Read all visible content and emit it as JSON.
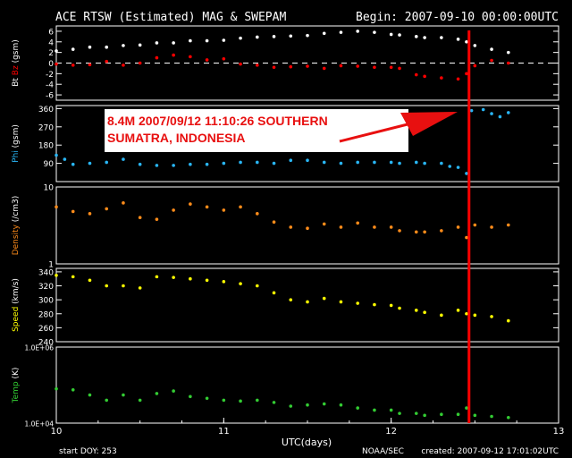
{
  "header": {
    "title": "ACE RTSW (Estimated) MAG & SWEPAM",
    "begin": "Begin: 2007-09-10 00:00:00UTC"
  },
  "footer": {
    "start_doy": "start DOY: 253",
    "xlabel": "UTC(days)",
    "source": "NOAA/SEC",
    "created": "created: 2007-09-12 17:01:02UTC"
  },
  "annotation": {
    "line1": "8.4M  2007/09/12 11:10:26 SOUTHERN",
    "line2": "SUMATRA, INDONESIA",
    "event_day": 12.465
  },
  "colors": {
    "bt": "#ffffff",
    "bz": "#ff0000",
    "phi": "#29b6f6",
    "density": "#ff8c1a",
    "speed": "#ffff00",
    "temp": "#33cc33",
    "event_line": "#ff0000",
    "frame": "#ffffff"
  },
  "chart_data": {
    "type": "scatter",
    "x_range": [
      10,
      13
    ],
    "x_ticks": [
      "10",
      "11",
      "12",
      "13"
    ],
    "panels": [
      {
        "id": "mag",
        "ylabel_parts": [
          {
            "text": "Bt",
            "color": "#ffffff"
          },
          {
            "text": " Bz",
            "color": "#ff0000"
          },
          {
            "text": " (gsm)",
            "color": "#ffffff"
          }
        ],
        "ylim": [
          -7,
          7
        ],
        "yticks": [
          "6",
          "4",
          "2",
          "0",
          "-2",
          "-4",
          "-6"
        ],
        "ytick_values": [
          6,
          4,
          2,
          0,
          -2,
          -4,
          -6
        ],
        "zero_line": 0,
        "series": [
          {
            "name": "Bt",
            "color": "#ffffff",
            "points": [
              [
                10.0,
                2.3
              ],
              [
                10.1,
                2.6
              ],
              [
                10.2,
                3.0
              ],
              [
                10.3,
                3.0
              ],
              [
                10.4,
                3.3
              ],
              [
                10.5,
                3.4
              ],
              [
                10.6,
                3.8
              ],
              [
                10.7,
                3.8
              ],
              [
                10.8,
                4.2
              ],
              [
                10.9,
                4.2
              ],
              [
                11.0,
                4.3
              ],
              [
                11.1,
                4.7
              ],
              [
                11.2,
                4.9
              ],
              [
                11.3,
                5.0
              ],
              [
                11.4,
                5.1
              ],
              [
                11.5,
                5.2
              ],
              [
                11.6,
                5.6
              ],
              [
                11.7,
                5.8
              ],
              [
                11.8,
                6.0
              ],
              [
                11.9,
                5.8
              ],
              [
                12.0,
                5.4
              ],
              [
                12.05,
                5.3
              ],
              [
                12.15,
                5.0
              ],
              [
                12.2,
                4.8
              ],
              [
                12.3,
                4.8
              ],
              [
                12.4,
                4.5
              ],
              [
                12.45,
                4.0
              ],
              [
                12.5,
                3.3
              ],
              [
                12.6,
                2.6
              ],
              [
                12.7,
                2.0
              ]
            ]
          },
          {
            "name": "Bz",
            "color": "#ff0000",
            "points": [
              [
                10.0,
                -0.2
              ],
              [
                10.1,
                -0.4
              ],
              [
                10.2,
                -0.3
              ],
              [
                10.3,
                0.3
              ],
              [
                10.4,
                -0.4
              ],
              [
                10.5,
                0.0
              ],
              [
                10.6,
                1.0
              ],
              [
                10.7,
                1.5
              ],
              [
                10.8,
                1.2
              ],
              [
                10.9,
                0.6
              ],
              [
                11.0,
                0.8
              ],
              [
                11.1,
                -0.2
              ],
              [
                11.2,
                -0.4
              ],
              [
                11.3,
                -0.8
              ],
              [
                11.4,
                -0.7
              ],
              [
                11.5,
                -0.6
              ],
              [
                11.6,
                -1.0
              ],
              [
                11.7,
                -0.5
              ],
              [
                11.8,
                -0.6
              ],
              [
                11.9,
                -0.8
              ],
              [
                12.0,
                -0.8
              ],
              [
                12.05,
                -1.0
              ],
              [
                12.15,
                -2.2
              ],
              [
                12.2,
                -2.5
              ],
              [
                12.3,
                -2.8
              ],
              [
                12.4,
                -3.0
              ],
              [
                12.45,
                -2.0
              ],
              [
                12.5,
                -0.5
              ],
              [
                12.6,
                0.5
              ],
              [
                12.7,
                0.0
              ]
            ]
          }
        ]
      },
      {
        "id": "phi",
        "ylabel_parts": [
          {
            "text": "Phi",
            "color": "#29b6f6"
          },
          {
            "text": " (gsm)",
            "color": "#ffffff"
          }
        ],
        "ylim": [
          0,
          375
        ],
        "yticks": [
          "360",
          "270",
          "180",
          "90"
        ],
        "ytick_values": [
          360,
          270,
          180,
          90
        ],
        "series": [
          {
            "name": "Phi",
            "color": "#29b6f6",
            "points": [
              [
                10.0,
                130
              ],
              [
                10.05,
                110
              ],
              [
                10.1,
                85
              ],
              [
                10.2,
                90
              ],
              [
                10.3,
                95
              ],
              [
                10.4,
                110
              ],
              [
                10.5,
                85
              ],
              [
                10.6,
                80
              ],
              [
                10.7,
                80
              ],
              [
                10.8,
                85
              ],
              [
                10.9,
                85
              ],
              [
                11.0,
                90
              ],
              [
                11.1,
                95
              ],
              [
                11.2,
                95
              ],
              [
                11.3,
                90
              ],
              [
                11.4,
                105
              ],
              [
                11.5,
                105
              ],
              [
                11.6,
                95
              ],
              [
                11.7,
                90
              ],
              [
                11.8,
                95
              ],
              [
                11.9,
                95
              ],
              [
                12.0,
                95
              ],
              [
                12.05,
                90
              ],
              [
                12.15,
                95
              ],
              [
                12.2,
                90
              ],
              [
                12.3,
                90
              ],
              [
                12.35,
                75
              ],
              [
                12.4,
                70
              ],
              [
                12.45,
                40
              ],
              [
                12.48,
                350
              ],
              [
                12.55,
                355
              ],
              [
                12.6,
                335
              ],
              [
                12.65,
                320
              ],
              [
                12.7,
                340
              ]
            ]
          }
        ]
      },
      {
        "id": "density",
        "ylabel_parts": [
          {
            "text": "Density",
            "color": "#ff8c1a"
          },
          {
            "text": " (/cm3)",
            "color": "#ffffff"
          }
        ],
        "ylim": [
          1,
          10
        ],
        "yscale": "log",
        "yticks": [
          "10",
          "1"
        ],
        "ytick_values": [
          10,
          1
        ],
        "series": [
          {
            "name": "Density",
            "color": "#ff8c1a",
            "points": [
              [
                10.0,
                5.5
              ],
              [
                10.1,
                4.8
              ],
              [
                10.2,
                4.5
              ],
              [
                10.3,
                5.2
              ],
              [
                10.4,
                6.2
              ],
              [
                10.5,
                4.0
              ],
              [
                10.6,
                3.8
              ],
              [
                10.7,
                5.0
              ],
              [
                10.8,
                6.0
              ],
              [
                10.9,
                5.5
              ],
              [
                11.0,
                5.0
              ],
              [
                11.1,
                5.5
              ],
              [
                11.2,
                4.5
              ],
              [
                11.3,
                3.5
              ],
              [
                11.4,
                3.0
              ],
              [
                11.5,
                2.9
              ],
              [
                11.6,
                3.3
              ],
              [
                11.7,
                3.0
              ],
              [
                11.8,
                3.4
              ],
              [
                11.9,
                3.0
              ],
              [
                12.0,
                3.0
              ],
              [
                12.05,
                2.7
              ],
              [
                12.15,
                2.6
              ],
              [
                12.2,
                2.6
              ],
              [
                12.3,
                2.7
              ],
              [
                12.4,
                3.0
              ],
              [
                12.45,
                2.2
              ],
              [
                12.5,
                3.2
              ],
              [
                12.6,
                3.0
              ],
              [
                12.7,
                3.2
              ]
            ]
          }
        ]
      },
      {
        "id": "speed",
        "ylabel_parts": [
          {
            "text": "Speed",
            "color": "#ffff00"
          },
          {
            "text": " (km/s)",
            "color": "#ffffff"
          }
        ],
        "ylim": [
          240,
          345
        ],
        "yticks": [
          "340",
          "320",
          "300",
          "280",
          "260",
          "240"
        ],
        "ytick_values": [
          340,
          320,
          300,
          280,
          260,
          240
        ],
        "series": [
          {
            "name": "Speed",
            "color": "#ffff00",
            "points": [
              [
                10.0,
                335
              ],
              [
                10.1,
                333
              ],
              [
                10.2,
                328
              ],
              [
                10.3,
                320
              ],
              [
                10.4,
                320
              ],
              [
                10.5,
                317
              ],
              [
                10.6,
                333
              ],
              [
                10.7,
                332
              ],
              [
                10.8,
                330
              ],
              [
                10.9,
                328
              ],
              [
                11.0,
                326
              ],
              [
                11.1,
                323
              ],
              [
                11.2,
                320
              ],
              [
                11.3,
                310
              ],
              [
                11.4,
                300
              ],
              [
                11.5,
                297
              ],
              [
                11.6,
                302
              ],
              [
                11.7,
                297
              ],
              [
                11.8,
                295
              ],
              [
                11.9,
                293
              ],
              [
                12.0,
                292
              ],
              [
                12.05,
                288
              ],
              [
                12.15,
                285
              ],
              [
                12.2,
                282
              ],
              [
                12.3,
                278
              ],
              [
                12.4,
                285
              ],
              [
                12.45,
                280
              ],
              [
                12.5,
                278
              ],
              [
                12.6,
                276
              ],
              [
                12.7,
                270
              ]
            ]
          }
        ]
      },
      {
        "id": "temp",
        "ylabel_parts": [
          {
            "text": "Temp",
            "color": "#33cc33"
          },
          {
            "text": " (K)",
            "color": "#ffffff"
          }
        ],
        "ylim": [
          10000,
          1000000
        ],
        "yscale": "log",
        "yticks": [
          "1.0E+06",
          "1.0E+04"
        ],
        "ytick_values": [
          1000000,
          10000
        ],
        "series": [
          {
            "name": "Temp",
            "color": "#33cc33",
            "points": [
              [
                10.0,
                80000
              ],
              [
                10.1,
                75000
              ],
              [
                10.2,
                55000
              ],
              [
                10.3,
                40000
              ],
              [
                10.4,
                55000
              ],
              [
                10.5,
                40000
              ],
              [
                10.6,
                60000
              ],
              [
                10.7,
                70000
              ],
              [
                10.8,
                50000
              ],
              [
                10.9,
                45000
              ],
              [
                11.0,
                40000
              ],
              [
                11.1,
                38000
              ],
              [
                11.2,
                40000
              ],
              [
                11.3,
                35000
              ],
              [
                11.4,
                28000
              ],
              [
                11.5,
                30000
              ],
              [
                11.6,
                32000
              ],
              [
                11.7,
                30000
              ],
              [
                11.8,
                25000
              ],
              [
                11.9,
                22000
              ],
              [
                12.0,
                22000
              ],
              [
                12.05,
                18000
              ],
              [
                12.15,
                18000
              ],
              [
                12.2,
                16000
              ],
              [
                12.3,
                17000
              ],
              [
                12.4,
                17000
              ],
              [
                12.45,
                25000
              ],
              [
                12.5,
                16000
              ],
              [
                12.6,
                15000
              ],
              [
                12.7,
                14000
              ]
            ]
          }
        ]
      }
    ]
  }
}
